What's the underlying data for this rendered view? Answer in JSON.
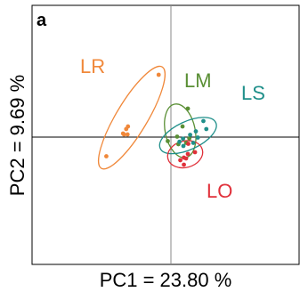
{
  "chart_data": {
    "type": "scatter",
    "panel_label": "a",
    "xlabel": "PC1 = 23.80 %",
    "ylabel": "PC2 = 9.69 %",
    "xlim": [
      -10,
      10
    ],
    "ylim": [
      -10,
      10
    ],
    "grid": false,
    "reference_lines": {
      "x": 0,
      "y": 0
    },
    "series": [
      {
        "name": "LR",
        "color": "#f0883a",
        "points": [
          [
            -1.72,
            8.0
          ],
          [
            -6.03,
            1.37
          ],
          [
            -6.28,
            1.03
          ],
          [
            -6.72,
            0.46
          ],
          [
            -6.09,
            0.34
          ],
          [
            -6.59,
            0.34
          ],
          [
            -9.07,
            -2.46
          ]
        ],
        "ellipse": {
          "cx": -5.5,
          "cy": 2.5,
          "rx": 8.3,
          "ry": 2.0,
          "angle_deg": -59
        }
      },
      {
        "name": "LM",
        "color": "#5a8f35",
        "points": [
          [
            2.38,
            3.66
          ],
          [
            1.63,
            1.37
          ],
          [
            0.87,
            0.06
          ],
          [
            2.58,
            -0.16
          ],
          [
            -0.44,
            -0.51
          ],
          [
            2.14,
            -0.74
          ],
          [
            1.05,
            -0.91
          ]
        ],
        "ellipse": {
          "cx": 1.3,
          "cy": 0.8,
          "rx": 2.1,
          "ry": 3.5,
          "angle_deg": -12
        }
      },
      {
        "name": "LS",
        "color": "#1f8f8a",
        "points": [
          [
            4.56,
            2.06
          ],
          [
            4.97,
            1.03
          ],
          [
            3.5,
            0.74
          ],
          [
            2.7,
            0.29
          ],
          [
            1.7,
            -0.2
          ],
          [
            1.2,
            -0.6
          ],
          [
            1.75,
            -1.14
          ],
          [
            3.14,
            -0.74
          ],
          [
            3.78,
            -0.06
          ]
        ],
        "ellipse": {
          "cx": 2.4,
          "cy": 0.2,
          "rx": 4.3,
          "ry": 1.8,
          "angle_deg": -25
        }
      },
      {
        "name": "LO",
        "color": "#e0303a",
        "points": [
          [
            2.44,
            -0.86
          ],
          [
            3.38,
            -1.94
          ],
          [
            2.38,
            -2.17
          ],
          [
            1.82,
            -2.63
          ],
          [
            1.82,
            -3.54
          ],
          [
            1.32,
            -2.97
          ],
          [
            2.13,
            -2.74
          ]
        ],
        "ellipse": {
          "cx": 2.0,
          "cy": -2.2,
          "rx": 2.5,
          "ry": 1.7,
          "angle_deg": -15
        }
      }
    ]
  }
}
